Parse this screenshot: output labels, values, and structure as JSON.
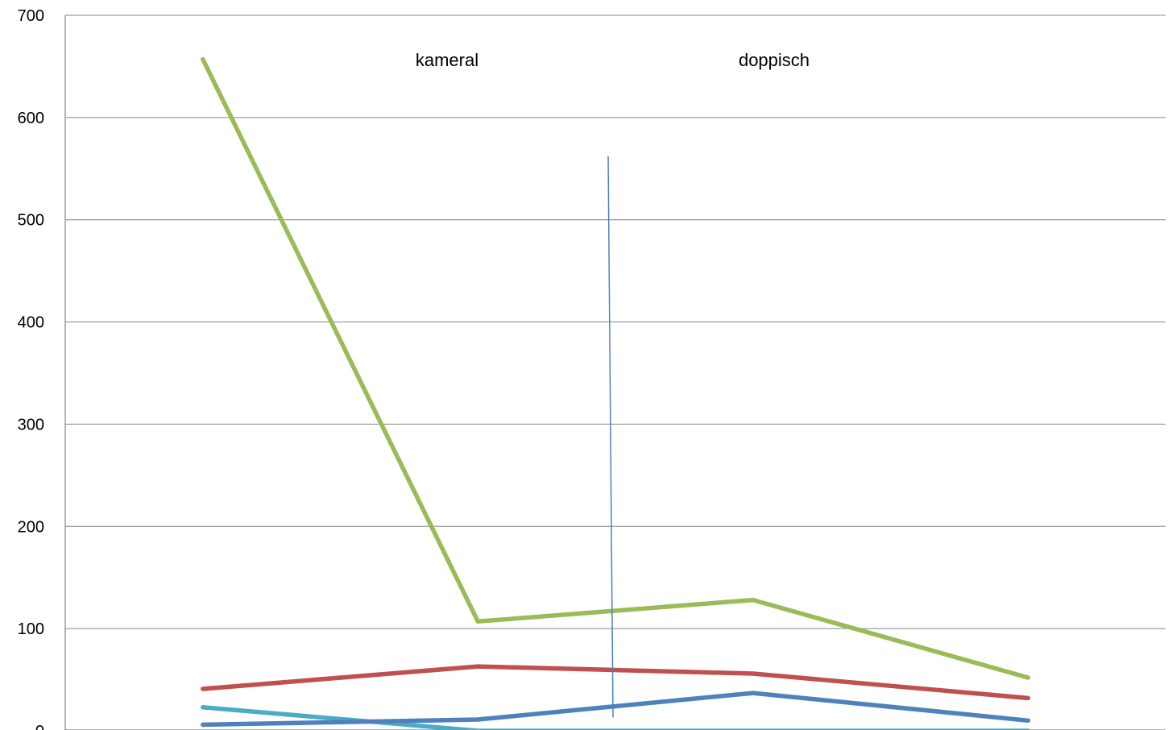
{
  "chart_data": {
    "type": "line",
    "title": "",
    "xlabel": "",
    "ylabel": "",
    "ylim": [
      0,
      700
    ],
    "yticks": [
      0,
      100,
      200,
      300,
      400,
      500,
      600,
      700
    ],
    "grid": true,
    "legend": "none",
    "categories": [
      "",
      "",
      "",
      ""
    ],
    "series": [
      {
        "color": "#9BBB59",
        "values": [
          657,
          107,
          128,
          52
        ]
      },
      {
        "color": "#C0504D",
        "values": [
          41,
          63,
          56,
          32
        ]
      },
      {
        "color": "#4F81BD",
        "values": [
          6,
          11,
          37,
          10
        ]
      },
      {
        "color": "#4BACC6",
        "values": [
          23,
          0,
          0,
          0
        ]
      }
    ],
    "annotations": [
      "kameral",
      "doppisch"
    ],
    "divider": {
      "color": "#4F81BD",
      "y_top": 562,
      "y_bottom": 13
    }
  }
}
